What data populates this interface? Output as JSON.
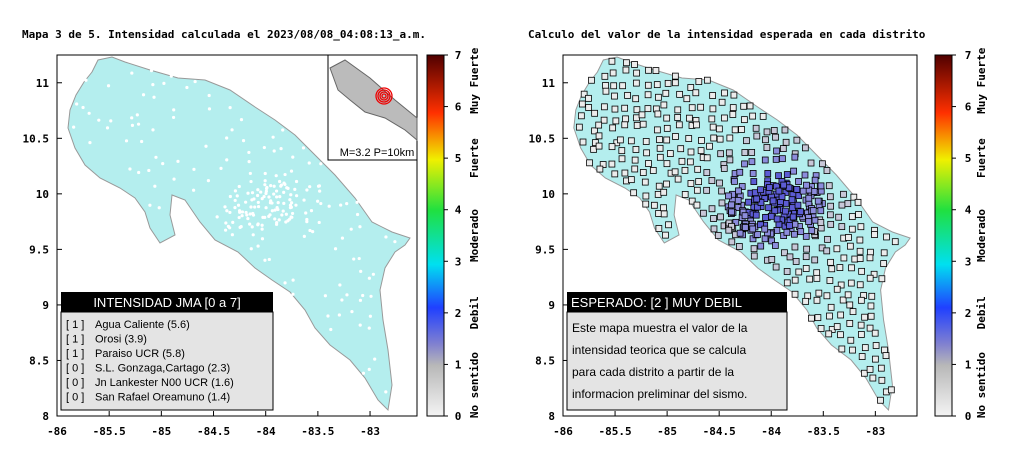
{
  "panels": [
    {
      "title": "Mapa 3 de 5. Intensidad calculada el 2023/08/08_04:08:13_a.m.",
      "xlim": [
        -86,
        -82.55
      ],
      "ylim": [
        8,
        11.25
      ],
      "xticks": [
        -86,
        -85.5,
        -85,
        -84.5,
        -84,
        -83.5,
        -83
      ],
      "yticks": [
        8,
        8.5,
        9,
        9.5,
        10,
        10.5,
        11
      ],
      "colorbar": {
        "lim": [
          0,
          7
        ],
        "ticks": [
          0,
          1,
          2,
          3,
          4,
          5,
          6,
          7
        ],
        "labels": [
          {
            "value": 0.6,
            "label": "No sentido"
          },
          {
            "value": 2,
            "label": "Debil"
          },
          {
            "value": 3.5,
            "label": "Moderado"
          },
          {
            "value": 5,
            "label": "Fuerte"
          },
          {
            "value": 6.5,
            "label": "Muy Fuerte"
          }
        ]
      },
      "inset": {
        "text": "M=3.2 P=10km"
      },
      "legend": {
        "title": "INTENSIDAD JMA [0 a 7]",
        "rows": [
          {
            "code": "[ 1 ]",
            "text": "Agua Caliente (5.6)"
          },
          {
            "code": "[ 1 ]",
            "text": "Orosi (3.9)"
          },
          {
            "code": "[ 1 ]",
            "text": "Paraiso UCR (5.8)"
          },
          {
            "code": "[ 0 ]",
            "text": "S.L. Gonzaga,Cartago (2.3)"
          },
          {
            "code": "[ 0 ]",
            "text": "Jn Lankester N00 UCR (1.6)"
          },
          {
            "code": "[ 0 ]",
            "text": "San Rafael Oreamuno (1.4)"
          }
        ]
      }
    },
    {
      "title": "Calculo del valor de la intensidad esperada en cada distrito",
      "xlim": [
        -86,
        -82.6
      ],
      "ylim": [
        8,
        11.25
      ],
      "xticks": [
        -86,
        -85.5,
        -85,
        -84.5,
        -84,
        -83.5,
        -83
      ],
      "yticks": [
        8,
        8.5,
        9,
        9.5,
        10,
        10.5,
        11
      ],
      "colorbar": {
        "lim": [
          0,
          7
        ],
        "ticks": [
          0,
          1,
          2,
          3,
          4,
          5,
          6,
          7
        ],
        "labels": [
          {
            "value": 0.6,
            "label": "No sentido"
          },
          {
            "value": 2,
            "label": "Debil"
          },
          {
            "value": 3.5,
            "label": "Moderado"
          },
          {
            "value": 5,
            "label": "Fuerte"
          },
          {
            "value": 6.5,
            "label": "Muy Fuerte"
          }
        ]
      },
      "note": {
        "title": "ESPERADO: [2 ] MUY DEBIL",
        "lines": [
          "Este mapa muestra el valor de la",
          "intensidad teorica que se calcula",
          "para cada distrito a partir de la",
          "informacion preliminar del sismo."
        ]
      }
    }
  ]
}
